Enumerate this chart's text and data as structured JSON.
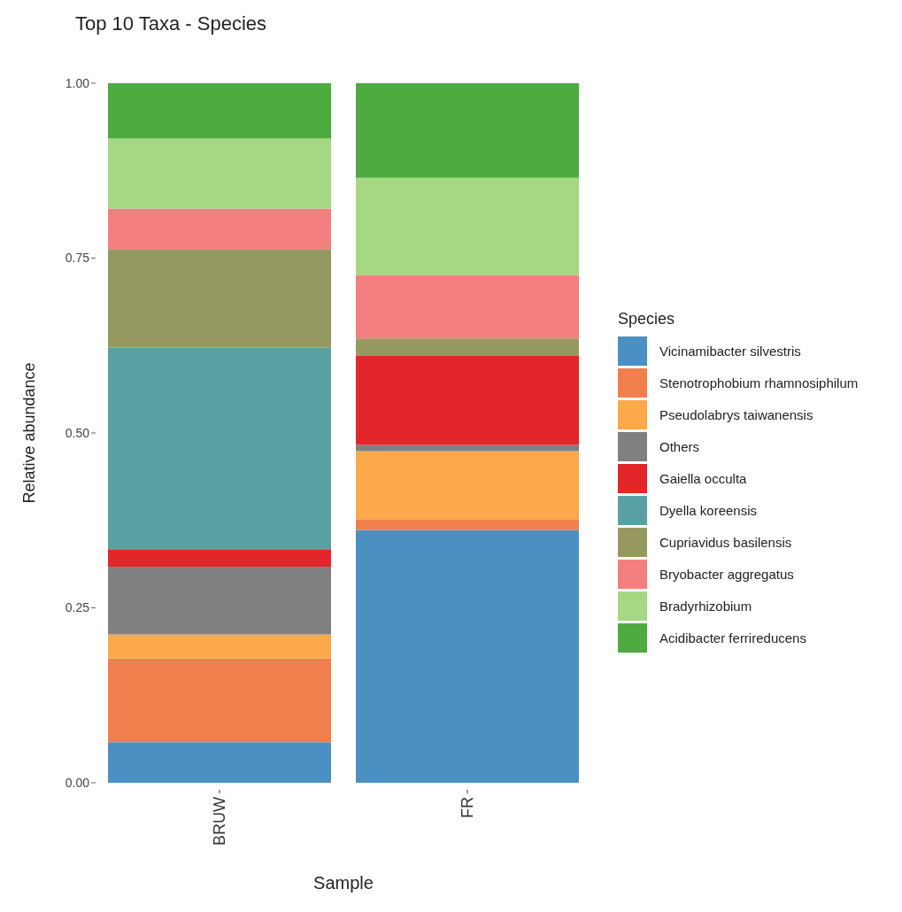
{
  "chart_data": {
    "type": "bar",
    "title": "Top 10 Taxa - Species",
    "xlabel": "Sample",
    "ylabel": "Relative abundance",
    "legend_title": "Species",
    "categories": [
      "BRUW",
      "FR"
    ],
    "stacked": true,
    "ylim": [
      0,
      1
    ],
    "yticks": [
      {
        "value": 0,
        "label": "0.00"
      },
      {
        "value": 0.25,
        "label": "0.25"
      },
      {
        "value": 0.5,
        "label": "0.50"
      },
      {
        "value": 0.75,
        "label": "0.75"
      },
      {
        "value": 1,
        "label": "1.00"
      }
    ],
    "grid": false,
    "legend": "right",
    "series": [
      {
        "name": "Vicinamibacter silvestris",
        "color": "#4a90c2",
        "values": [
          0.058,
          0.361
        ]
      },
      {
        "name": "Stenotrophobium rhamnosiphilum",
        "color": "#f07f4d",
        "values": [
          0.12,
          0.016
        ]
      },
      {
        "name": "Pseudolabrys taiwanensis",
        "color": "#fca94b",
        "values": [
          0.034,
          0.097
        ]
      },
      {
        "name": "Others",
        "color": "#808080",
        "values": [
          0.097,
          0.009
        ]
      },
      {
        "name": "Gaiella occulta",
        "color": "#e3262a",
        "values": [
          0.025,
          0.127
        ]
      },
      {
        "name": "Dyella koreensis",
        "color": "#5aa0a3",
        "values": [
          0.288,
          null
        ]
      },
      {
        "name": "Cupriavidus basilensis",
        "color": "#96995f",
        "values": [
          0.141,
          0.025
        ]
      },
      {
        "name": "Bryobacter aggregatus",
        "color": "#f47f7f",
        "values": [
          0.058,
          0.091
        ]
      },
      {
        "name": "Bradyrhizobium",
        "color": "#a6d783",
        "values": [
          0.1,
          0.139
        ]
      },
      {
        "name": "Acidibacter ferrireducens",
        "color": "#4dab3f",
        "values": [
          0.079,
          0.135
        ]
      }
    ]
  }
}
